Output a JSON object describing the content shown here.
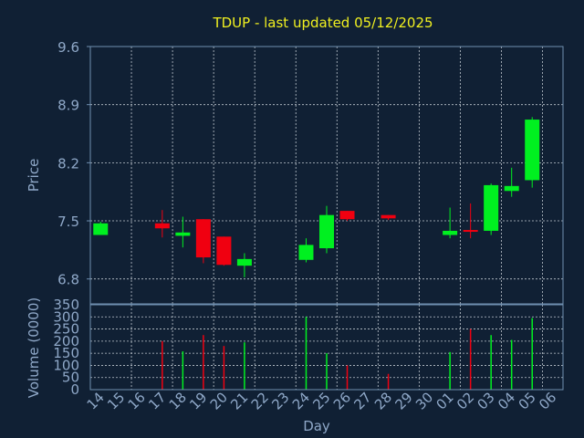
{
  "colors": {
    "background": "#102034",
    "frame": "#6f8fb0",
    "grid": "#c0c8d0",
    "text_title": "#f0f020",
    "text_axis": "#8fa8c8",
    "up": "#00f020",
    "down": "#f00010"
  },
  "chart_data": [
    {
      "type": "candlestick",
      "title": "TDUP - last updated 05/12/2025",
      "ylabel": "Price",
      "ylim": [
        6.5,
        9.6
      ],
      "yticks": [
        "6.8",
        "7.5",
        "8.2",
        "8.9",
        "9.6"
      ],
      "grid": true,
      "x": [
        "14",
        "15",
        "16",
        "17",
        "18",
        "19",
        "20",
        "21",
        "22",
        "23",
        "24",
        "25",
        "26",
        "27",
        "28",
        "29",
        "30",
        "01",
        "02",
        "03",
        "04",
        "05",
        "06"
      ],
      "candles": [
        {
          "x": "14",
          "open": 7.33,
          "high": 7.49,
          "low": 7.33,
          "close": 7.47
        },
        {
          "x": "17",
          "open": 7.47,
          "high": 7.63,
          "low": 7.3,
          "close": 7.41
        },
        {
          "x": "18",
          "open": 7.32,
          "high": 7.55,
          "low": 7.18,
          "close": 7.36
        },
        {
          "x": "19",
          "open": 7.52,
          "high": 7.52,
          "low": 6.99,
          "close": 7.06
        },
        {
          "x": "20",
          "open": 7.31,
          "high": 7.31,
          "low": 6.96,
          "close": 6.97
        },
        {
          "x": "21",
          "open": 6.96,
          "high": 7.11,
          "low": 6.82,
          "close": 7.04
        },
        {
          "x": "24",
          "open": 7.03,
          "high": 7.29,
          "low": 7.0,
          "close": 7.21
        },
        {
          "x": "25",
          "open": 7.17,
          "high": 7.68,
          "low": 7.11,
          "close": 7.57
        },
        {
          "x": "26",
          "open": 7.62,
          "high": 7.62,
          "low": 7.5,
          "close": 7.52
        },
        {
          "x": "28",
          "open": 7.57,
          "high": 7.57,
          "low": 7.51,
          "close": 7.53
        },
        {
          "x": "01",
          "open": 7.33,
          "high": 7.66,
          "low": 7.29,
          "close": 7.38
        },
        {
          "x": "02",
          "open": 7.39,
          "high": 7.71,
          "low": 7.29,
          "close": 7.37
        },
        {
          "x": "03",
          "open": 7.38,
          "high": 7.95,
          "low": 7.33,
          "close": 7.93
        },
        {
          "x": "04",
          "open": 7.86,
          "high": 8.14,
          "low": 7.79,
          "close": 7.92
        },
        {
          "x": "05",
          "open": 7.99,
          "high": 8.75,
          "low": 7.9,
          "close": 8.72
        }
      ]
    },
    {
      "type": "bar",
      "ylabel": "Volume (0000)",
      "xlabel": "Day",
      "ylim": [
        0,
        350
      ],
      "yticks": [
        "0",
        "50",
        "100",
        "150",
        "200",
        "250",
        "300",
        "350"
      ],
      "grid": true,
      "categories": [
        "14",
        "15",
        "16",
        "17",
        "18",
        "19",
        "20",
        "21",
        "22",
        "23",
        "24",
        "25",
        "26",
        "27",
        "28",
        "29",
        "30",
        "01",
        "02",
        "03",
        "04",
        "05",
        "06"
      ],
      "bars": [
        {
          "x": "17",
          "value": 200,
          "dir": "down"
        },
        {
          "x": "18",
          "value": 158,
          "dir": "up"
        },
        {
          "x": "19",
          "value": 225,
          "dir": "down"
        },
        {
          "x": "20",
          "value": 180,
          "dir": "down"
        },
        {
          "x": "21",
          "value": 195,
          "dir": "up"
        },
        {
          "x": "24",
          "value": 300,
          "dir": "up"
        },
        {
          "x": "25",
          "value": 150,
          "dir": "up"
        },
        {
          "x": "26",
          "value": 100,
          "dir": "down"
        },
        {
          "x": "28",
          "value": 65,
          "dir": "down"
        },
        {
          "x": "01",
          "value": 155,
          "dir": "up"
        },
        {
          "x": "02",
          "value": 250,
          "dir": "down"
        },
        {
          "x": "03",
          "value": 225,
          "dir": "up"
        },
        {
          "x": "04",
          "value": 205,
          "dir": "up"
        },
        {
          "x": "05",
          "value": 295,
          "dir": "up"
        }
      ]
    }
  ]
}
